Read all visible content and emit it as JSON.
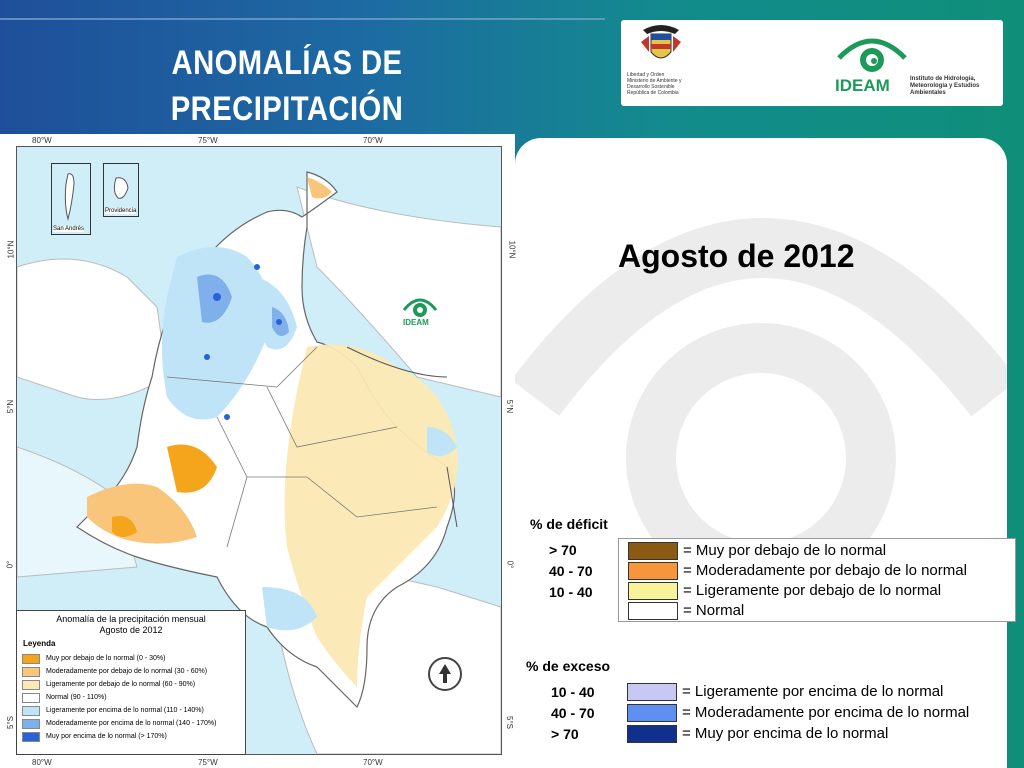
{
  "header": {
    "title_line1": "ANOMALÍAS DE",
    "title_line2": "PRECIPITACIÓN"
  },
  "logos": {
    "ministry_text": "Libertad y Orden\nMinisterio de Ambiente y\nDesarrollo Sostenible\nRepública de Colombia",
    "ideam_word": "IDEAM",
    "ideam_full": "Instituto de Hidrología, Meteorología y Estudios Ambientales"
  },
  "main": {
    "heading": "Agosto de 2012",
    "deficit_title": "% de déficit",
    "deficit_ranges": [
      "> 70",
      "40 -  70",
      "10 -  40"
    ],
    "excess_title": "% de exceso",
    "excess_ranges": [
      "10 -  40",
      "40 -  70",
      "> 70"
    ],
    "deficit_items": [
      {
        "label": "= Muy por debajo de lo normal",
        "color": "#8a5a12"
      },
      {
        "label": "= Moderadamente por debajo de lo normal",
        "color": "#f5963a"
      },
      {
        "label": "= Ligeramente por debajo de lo normal",
        "color": "#f7f39b"
      },
      {
        "label": "= Normal",
        "color": "#ffffff"
      }
    ],
    "excess_items": [
      {
        "label": "= Ligeramente por encima de lo normal",
        "color": "#c7c9f4"
      },
      {
        "label": "= Moderadamente por encima de lo normal",
        "color": "#5f8ff0"
      },
      {
        "label": "= Muy por encima de lo normal",
        "color": "#112f8c"
      }
    ]
  },
  "map": {
    "lon_labels": [
      "80°W",
      "75°W",
      "70°W"
    ],
    "lat_labels": [
      "10°N",
      "5°N",
      "0°",
      "5°S"
    ],
    "inset_labels": [
      "San Andrés",
      "Providencia"
    ],
    "logo_label": "IDEAM",
    "legend_title1": "Anomalía de la precipitación mensual",
    "legend_title2": "Agosto de 2012",
    "legend_head": "Leyenda",
    "legend_items": [
      {
        "label": "Muy por debajo de lo normal (0 - 30%)",
        "color": "#f4a51c"
      },
      {
        "label": "Moderadamente por debajo de lo normal (30 - 60%)",
        "color": "#f8c57a"
      },
      {
        "label": "Ligeramente por debajo de lo normal (60 - 90%)",
        "color": "#fbe9b4"
      },
      {
        "label": "Normal (90 - 110%)",
        "color": "#ffffff"
      },
      {
        "label": "Ligeramente por encima de lo normal (110 - 140%)",
        "color": "#bfe3f7"
      },
      {
        "label": "Moderadamente por encima de lo normal (140 - 170%)",
        "color": "#7fb0ec"
      },
      {
        "label": "Muy por encima de lo normal (> 170%)",
        "color": "#2962d8"
      }
    ]
  }
}
